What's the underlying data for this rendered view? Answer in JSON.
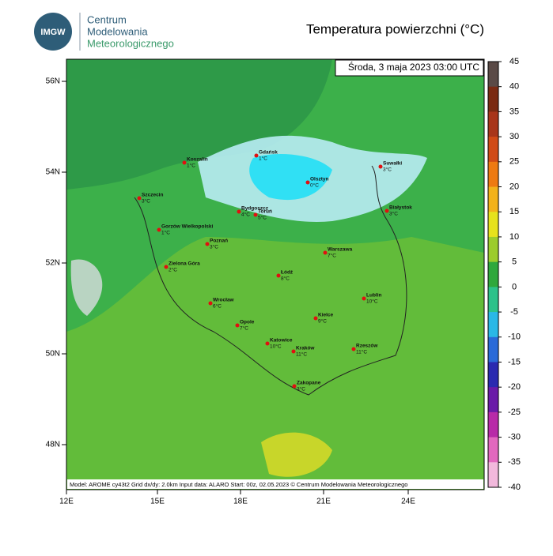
{
  "header": {
    "logo": "IMGW",
    "org": [
      "Centrum",
      "Modelowania",
      "Meteorologicznego"
    ],
    "title": "Temperatura powierzchni (°C)"
  },
  "map": {
    "timestamp": "Środa, 3 maja 2023 03:00 UTC",
    "footer": "Model: AROME cy43t2  Grid dx/dy: 2.0km  Input data: ALARO  Start: 00z, 02.05.2023  © Centrum Modelowania Meteorologicznego",
    "lat_labels": [
      "56N",
      "54N",
      "52N",
      "50N",
      "48N"
    ],
    "lon_labels": [
      "12E",
      "15E",
      "18E",
      "21E",
      "24E"
    ],
    "cities": [
      {
        "name": "Koszalin",
        "temp": "1°C"
      },
      {
        "name": "Gdańsk",
        "temp": "1°C"
      },
      {
        "name": "Suwałki",
        "temp": "3°C"
      },
      {
        "name": "Szczecin",
        "temp": "3°C"
      },
      {
        "name": "Olsztyn",
        "temp": "0°C"
      },
      {
        "name": "Bydgoszcz",
        "temp": "4°C"
      },
      {
        "name": "Toruń",
        "temp": "5°C"
      },
      {
        "name": "Białystok",
        "temp": "3°C"
      },
      {
        "name": "Gorzów Wielkopolski",
        "temp": "1°C"
      },
      {
        "name": "Poznań",
        "temp": "3°C"
      },
      {
        "name": "Warszawa",
        "temp": "7°C"
      },
      {
        "name": "Zielona Góra",
        "temp": "2°C"
      },
      {
        "name": "Łódź",
        "temp": "8°C"
      },
      {
        "name": "Lublin",
        "temp": "10°C"
      },
      {
        "name": "Wrocław",
        "temp": "6°C"
      },
      {
        "name": "Kielce",
        "temp": "9°C"
      },
      {
        "name": "Opole",
        "temp": "7°C"
      },
      {
        "name": "Katowice",
        "temp": "10°C"
      },
      {
        "name": "Rzeszów",
        "temp": "11°C"
      },
      {
        "name": "Kraków",
        "temp": "11°C"
      },
      {
        "name": "Zakopane",
        "temp": "3°C"
      }
    ]
  },
  "colorbar": {
    "ticks": [
      45,
      40,
      35,
      30,
      25,
      20,
      15,
      10,
      5,
      0,
      -5,
      -10,
      -15,
      -20,
      -25,
      -30,
      -35,
      -40
    ],
    "colors": [
      "#5a4a46",
      "#7a2a12",
      "#a8351a",
      "#d04a16",
      "#ee7a12",
      "#f2b21a",
      "#e6e21c",
      "#9ccc2c",
      "#2fa83c",
      "#2cc28a",
      "#2ab8e6",
      "#2a6ad8",
      "#2a2ab0",
      "#6a1aa8",
      "#b82aa8",
      "#e268be",
      "#f2b8dc"
    ]
  }
}
